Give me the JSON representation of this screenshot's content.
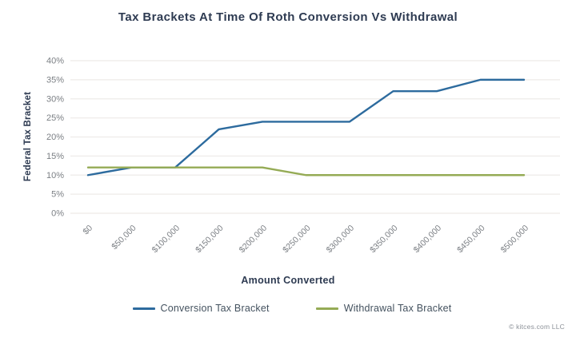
{
  "attribution": "© kitces.com LLC",
  "chart_data": {
    "type": "line",
    "title": "Tax Brackets At Time Of Roth Conversion Vs Withdrawal",
    "xlabel": "Amount Converted",
    "ylabel": "Federal Tax Bracket",
    "categories": [
      "$0",
      "$50,000",
      "$100,000",
      "$150,000",
      "$200,000",
      "$250,000",
      "$300,000",
      "$350,000",
      "$400,000",
      "$450,000",
      "$500,000"
    ],
    "series": [
      {
        "name": "Conversion Tax Bracket",
        "color": "#2d6b9e",
        "values": [
          10,
          12,
          12,
          22,
          24,
          24,
          24,
          32,
          32,
          35,
          35
        ]
      },
      {
        "name": "Withdrawal Tax Bracket",
        "color": "#95ab55",
        "values": [
          12,
          12,
          12,
          12,
          12,
          10,
          10,
          10,
          10,
          10,
          10
        ]
      }
    ],
    "ylim": [
      0,
      40
    ],
    "ytick_step": 5,
    "ytick_suffix": "%",
    "grid": true,
    "legend_position": "bottom"
  },
  "style_colors": {
    "title_text": "#2e3b52",
    "tick_text": "#7b7f84",
    "gridline": "#f0eeec",
    "legend_text": "#44525f"
  }
}
